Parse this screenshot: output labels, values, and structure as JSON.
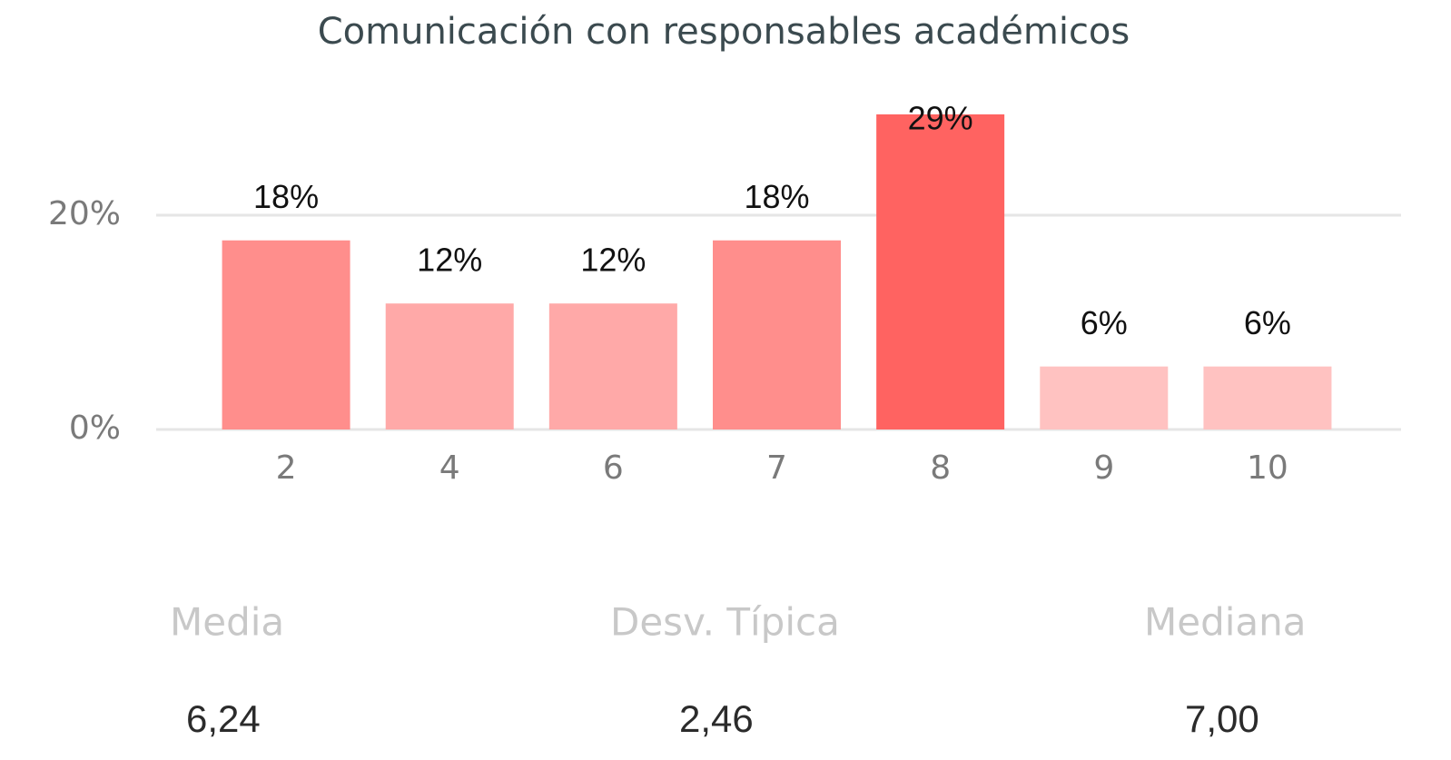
{
  "chart_data": {
    "type": "bar",
    "title": "Comunicación con responsables académicos",
    "categories": [
      "2",
      "4",
      "6",
      "7",
      "8",
      "9",
      "10"
    ],
    "values": [
      17.65,
      11.76,
      11.76,
      17.65,
      29.41,
      5.88,
      5.88
    ],
    "value_labels": [
      "18%",
      "12%",
      "12%",
      "18%",
      "29%",
      "6%",
      "6%"
    ],
    "colors": [
      "#ff8e8c",
      "#ffa9a8",
      "#ffa9a8",
      "#ff8e8c",
      "#ff6361",
      "#ffc2c1",
      "#ffc2c1"
    ],
    "ylim": [
      0,
      32
    ],
    "yticks": [
      {
        "value": 0,
        "label": "0%"
      },
      {
        "value": 20,
        "label": "20%"
      }
    ],
    "grid": true
  },
  "stats": [
    {
      "label": "Media",
      "value": "6,24"
    },
    {
      "label": "Desv. Típica",
      "value": "2,46"
    },
    {
      "label": "Mediana",
      "value": "7,00"
    }
  ]
}
